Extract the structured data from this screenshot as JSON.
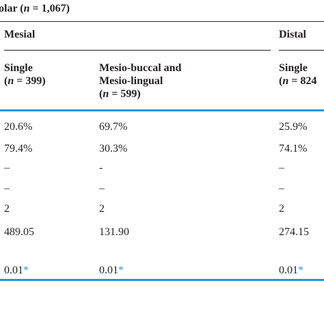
{
  "table": {
    "caption_fragment": "olar (",
    "caption_n_label": "n",
    "caption_n_value": " = 1,067)",
    "groups": {
      "mesial": "Mesial",
      "distal": "Distal"
    },
    "columns": {
      "mesial_single": {
        "line1": "Single",
        "n_label": "n",
        "n_value": " = 399)"
      },
      "mesial_mb_ml": {
        "line1": "Mesio-buccal and",
        "line2": "Mesio-lingual",
        "n_label": "n",
        "n_value": " = 599)"
      },
      "distal_single": {
        "line1": "Single",
        "n_label": "n",
        "n_value": " = 824"
      }
    },
    "rows": [
      [
        "20.6%",
        "69.7%",
        "25.9%"
      ],
      [
        "79.4%",
        "30.3%",
        "74.1%"
      ],
      [
        "–",
        "-",
        "–"
      ],
      [
        "–",
        "–",
        "–"
      ],
      [
        "2",
        "2",
        "2"
      ],
      [
        "489.05",
        "131.90",
        "274.15"
      ]
    ],
    "p_row": {
      "values": [
        "0.01",
        "0.01",
        "0.01"
      ],
      "marker": "*"
    },
    "colors": {
      "accent": "#1a9ad6",
      "text": "#231f20"
    }
  }
}
